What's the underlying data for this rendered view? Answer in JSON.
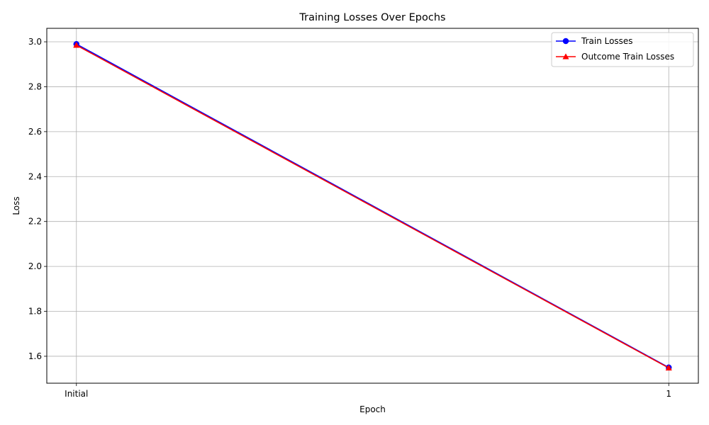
{
  "chart_data": {
    "type": "line",
    "title": "Training Losses Over Epochs",
    "xlabel": "Epoch",
    "ylabel": "Loss",
    "categories": [
      "Initial",
      "1"
    ],
    "ylim": [
      1.48,
      3.06
    ],
    "yticks": [
      1.6,
      1.8,
      2.0,
      2.2,
      2.4,
      2.6,
      2.8,
      3.0
    ],
    "ytick_labels": [
      "1.6",
      "1.8",
      "2.0",
      "2.2",
      "2.4",
      "2.6",
      "2.8",
      "3.0"
    ],
    "grid": true,
    "legend_position": "top-right",
    "series": [
      {
        "name": "Train Losses",
        "values": [
          2.99,
          1.55
        ],
        "color": "#0000ff",
        "marker": "circle"
      },
      {
        "name": "Outcome Train Losses",
        "values": [
          2.985,
          1.548
        ],
        "color": "#ff0000",
        "marker": "triangle"
      }
    ]
  }
}
